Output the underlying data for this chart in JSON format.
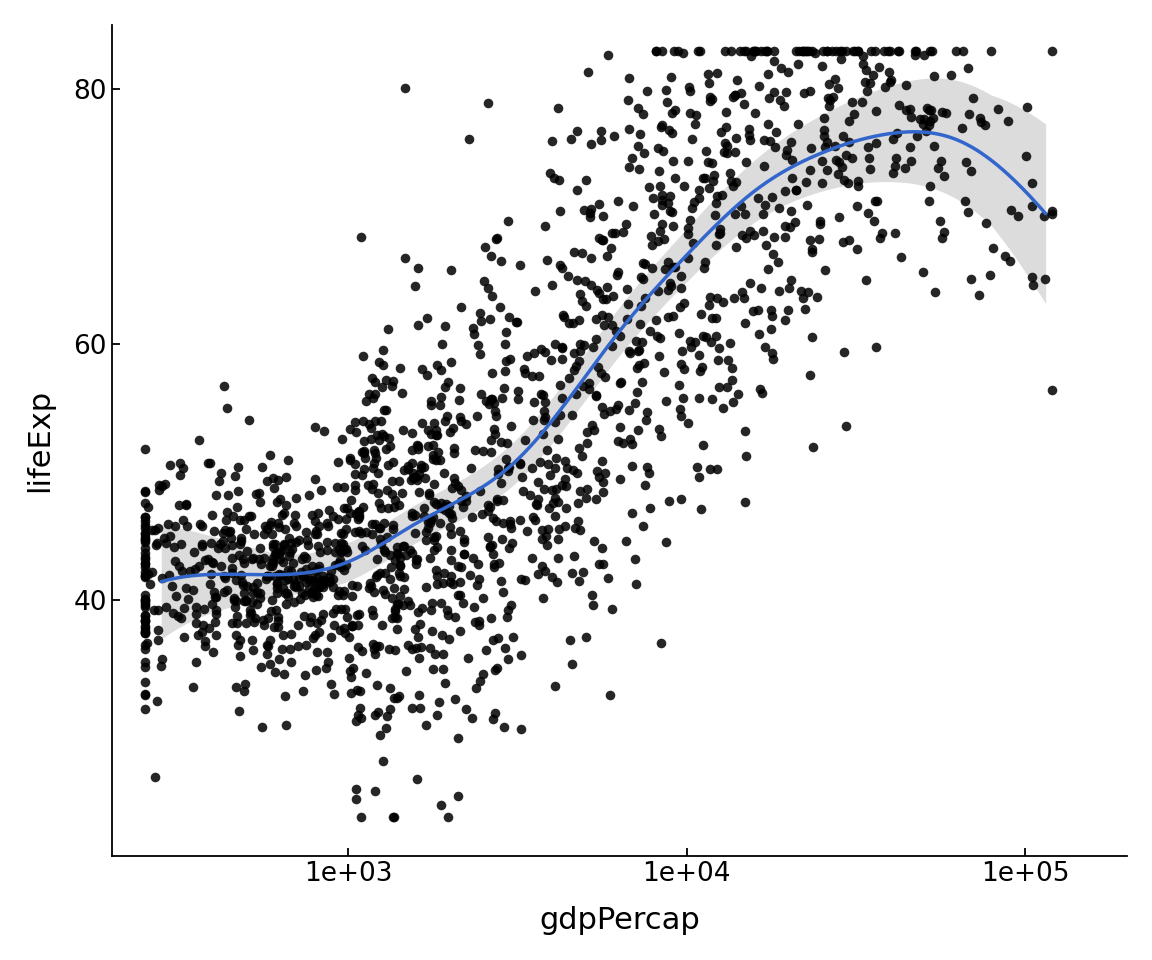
{
  "title": "",
  "xlabel": "gdpPercap",
  "ylabel": "lifeExp",
  "xlim_log": [
    200,
    200000
  ],
  "ylim": [
    20,
    85
  ],
  "yticks": [
    40,
    60,
    80
  ],
  "xticks": [
    1000,
    10000,
    100000
  ],
  "xtick_labels": [
    "1e+03",
    "1e+04",
    "1e+05"
  ],
  "dot_color": "black",
  "dot_size": 48,
  "dot_alpha": 0.85,
  "line_color": "#3366cc",
  "line_width": 2.5,
  "ci_color": "#bbbbbb",
  "ci_alpha": 0.5,
  "background_color": "#ffffff",
  "font_size_labels": 22,
  "font_size_ticks": 19,
  "seed": 42,
  "n_points": 1704
}
